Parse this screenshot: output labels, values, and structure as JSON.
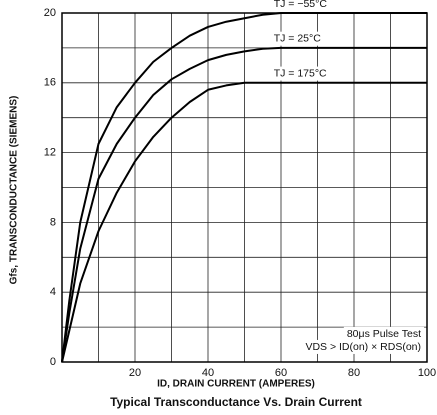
{
  "chart_data": {
    "type": "line",
    "title": "Typical Transconductance Vs. Drain Current",
    "x_label": "ID, DRAIN CURRENT (AMPERES)",
    "y_label": "Gfs, TRANSCONDUCTANCE (SIEMENS)",
    "xlim": [
      0,
      100
    ],
    "ylim": [
      0,
      20
    ],
    "xticks": [
      20,
      40,
      60,
      80,
      100
    ],
    "yticks": [
      0,
      4,
      8,
      12,
      16,
      20
    ],
    "grid": true,
    "minor_grid": true,
    "annotations": [
      "80μs Pulse Test",
      "VDS > ID(on) × RDS(on)"
    ],
    "x": [
      0,
      2,
      5,
      10,
      15,
      20,
      25,
      30,
      35,
      40,
      45,
      50,
      55,
      60,
      100
    ],
    "series": [
      {
        "name": "TJ = −55°C",
        "color": "#000000",
        "values": [
          0,
          3.5,
          8,
          12.5,
          14.6,
          16,
          17.2,
          18,
          18.7,
          19.2,
          19.5,
          19.7,
          19.9,
          20,
          20
        ]
      },
      {
        "name": "TJ = 25°C",
        "color": "#000000",
        "values": [
          0,
          2.8,
          6.5,
          10.5,
          12.5,
          14,
          15.3,
          16.2,
          16.8,
          17.3,
          17.6,
          17.8,
          17.95,
          18,
          18
        ]
      },
      {
        "name": "TJ = 175°C",
        "color": "#000000",
        "values": [
          0,
          1.8,
          4.5,
          7.5,
          9.7,
          11.5,
          12.9,
          14,
          14.9,
          15.6,
          15.85,
          16,
          16,
          16,
          16
        ]
      }
    ]
  }
}
